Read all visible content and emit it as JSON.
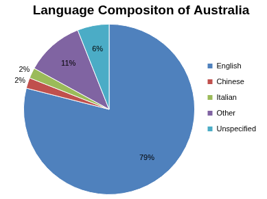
{
  "chart_data": {
    "type": "pie",
    "title": "Language Compositon of Australia",
    "categories": [
      "English",
      "Chinese",
      "Italian",
      "Other",
      "Unspecified"
    ],
    "values": [
      79,
      2,
      2,
      11,
      6
    ],
    "value_labels": [
      "79%",
      "2%",
      "2%",
      "11%",
      "6%"
    ],
    "colors": [
      "#4f81bd",
      "#c0504d",
      "#9bbb59",
      "#8064a2",
      "#4bacc6"
    ],
    "data_labels": true,
    "legend": "right"
  }
}
